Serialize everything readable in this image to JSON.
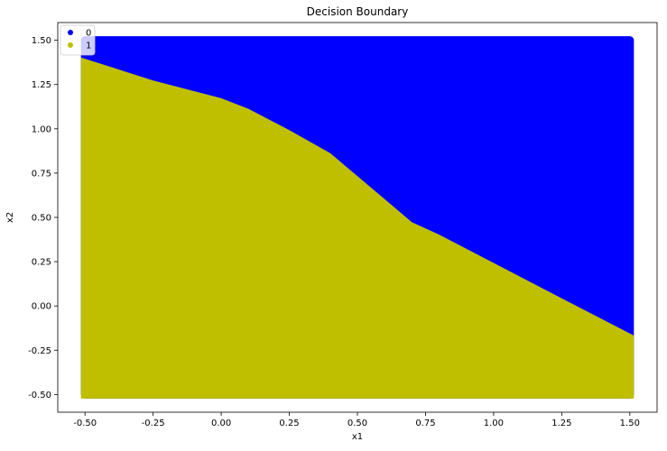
{
  "chart_data": {
    "type": "scatter",
    "title": "Decision Boundary",
    "xlabel": "x1",
    "ylabel": "x2",
    "xlim": [
      -0.6,
      1.6
    ],
    "ylim": [
      -0.6,
      1.6
    ],
    "xticks": [
      "-0.50",
      "-0.25",
      "0.00",
      "0.25",
      "0.50",
      "0.75",
      "1.00",
      "1.25",
      "1.50"
    ],
    "yticks": [
      "-0.50",
      "-0.25",
      "0.00",
      "0.25",
      "0.50",
      "0.75",
      "1.00",
      "1.25",
      "1.50"
    ],
    "grid": false,
    "legend_position": "top-left",
    "series": [
      {
        "name": "0",
        "color": "#0000ff",
        "region": "above boundary",
        "x_range": [
          -0.5,
          1.5
        ],
        "y_range": [
          -0.5,
          1.5
        ]
      },
      {
        "name": "1",
        "color": "#bfbf00",
        "region": "below boundary",
        "x_range": [
          -0.5,
          1.5
        ],
        "y_range": [
          -0.5,
          1.5
        ]
      }
    ],
    "boundary": {
      "x": [
        -0.5,
        -0.25,
        0.0,
        0.1,
        0.25,
        0.4,
        0.5,
        0.6,
        0.7,
        0.8,
        1.0,
        1.25,
        1.5
      ],
      "y": [
        1.38,
        1.25,
        1.15,
        1.09,
        0.97,
        0.84,
        0.71,
        0.58,
        0.45,
        0.38,
        0.22,
        0.02,
        -0.19
      ]
    }
  }
}
